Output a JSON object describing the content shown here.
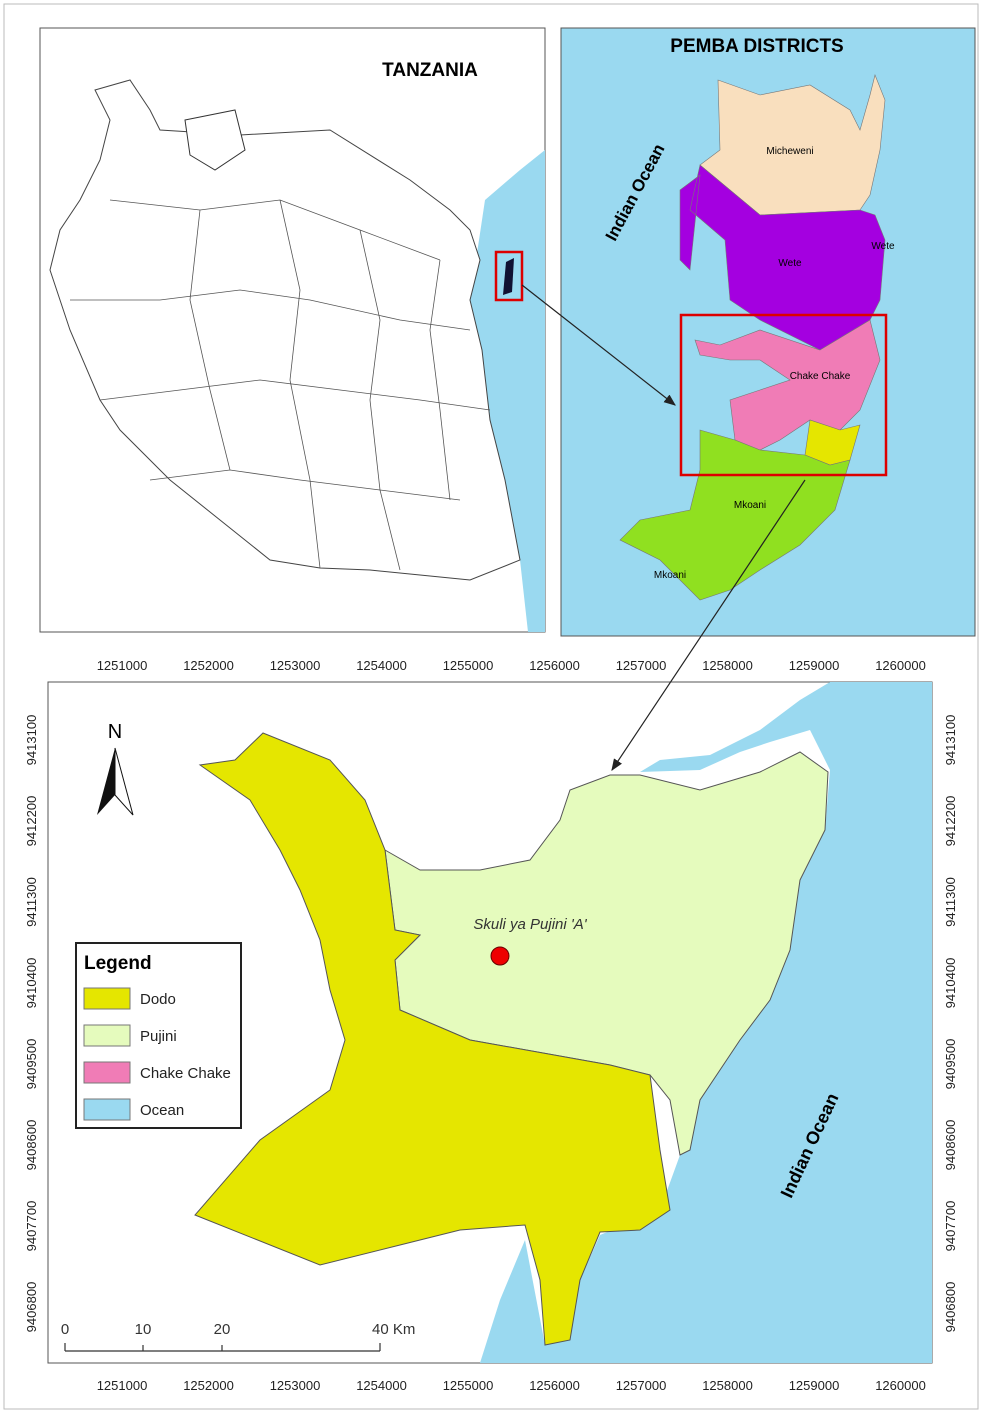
{
  "overview": {
    "title": "TANZANIA"
  },
  "inset": {
    "title": "PEMBA DISTRICTS",
    "ocean_label": "Indian Ocean",
    "districts": [
      "Micheweni",
      "Wete",
      "Wete",
      "Chake Chake",
      "Mkoani",
      "Mkoani"
    ]
  },
  "main_map": {
    "x_labels": [
      1251000,
      1252000,
      1253000,
      1254000,
      1255000,
      1256000,
      1257000,
      1258000,
      1259000,
      1260000
    ],
    "y_labels": [
      9413100,
      9412200,
      9411300,
      9410400,
      9409500,
      9408600,
      9407700,
      9406800
    ],
    "north": "N",
    "site_label": "Skuli ya Pujini 'A'",
    "ocean_label": "Indian Ocean",
    "legend": {
      "title": "Legend",
      "items": [
        "Dodo",
        "Pujini",
        "Chake Chake",
        "Ocean"
      ]
    },
    "scale_bar": {
      "labels": [
        "0",
        "10",
        "20",
        "40 Km"
      ]
    }
  }
}
